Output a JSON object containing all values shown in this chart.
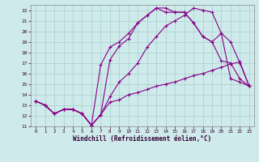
{
  "xlabel": "Windchill (Refroidissement éolien,°C)",
  "bg_color": "#ceeaea",
  "grid_color": "#aacece",
  "line_color": "#880088",
  "xlim": [
    -0.5,
    23.5
  ],
  "ylim": [
    11,
    22.5
  ],
  "yticks": [
    11,
    12,
    13,
    14,
    15,
    16,
    17,
    18,
    19,
    20,
    21,
    22
  ],
  "xticks": [
    0,
    1,
    2,
    3,
    4,
    5,
    6,
    7,
    8,
    9,
    10,
    11,
    12,
    13,
    14,
    15,
    16,
    17,
    18,
    19,
    20,
    21,
    22,
    23
  ],
  "line1_x": [
    0,
    1,
    2,
    3,
    4,
    5,
    6,
    7,
    8,
    9,
    10,
    11,
    12,
    13,
    14,
    15,
    16,
    17,
    18,
    19,
    20,
    21,
    22,
    23
  ],
  "line1_y": [
    13.4,
    13.0,
    12.2,
    12.6,
    12.6,
    12.2,
    11.1,
    12.1,
    13.3,
    13.5,
    14.0,
    14.2,
    14.5,
    14.8,
    15.0,
    15.2,
    15.5,
    15.8,
    16.0,
    16.3,
    16.6,
    16.9,
    17.1,
    14.8
  ],
  "line2_x": [
    0,
    1,
    2,
    3,
    4,
    5,
    6,
    7,
    8,
    9,
    10,
    11,
    12,
    13,
    14,
    15,
    16,
    17,
    18,
    19,
    20,
    21,
    22,
    23
  ],
  "line2_y": [
    13.4,
    13.0,
    12.2,
    12.6,
    12.6,
    12.2,
    11.1,
    12.1,
    17.3,
    18.6,
    19.3,
    20.8,
    21.5,
    22.2,
    22.2,
    21.8,
    21.8,
    20.8,
    19.5,
    19.0,
    19.8,
    15.5,
    15.2,
    14.8
  ],
  "line3_x": [
    0,
    1,
    2,
    3,
    4,
    5,
    6,
    7,
    8,
    9,
    10,
    11,
    12,
    13,
    14,
    15,
    16,
    17,
    18,
    19,
    20,
    21,
    22,
    23
  ],
  "line3_y": [
    13.4,
    13.0,
    12.2,
    12.6,
    12.6,
    12.2,
    11.1,
    16.8,
    18.5,
    19.0,
    19.8,
    20.8,
    21.5,
    22.2,
    21.8,
    21.8,
    21.8,
    20.8,
    19.5,
    19.0,
    17.2,
    17.0,
    15.5,
    14.8
  ],
  "line4_x": [
    0,
    1,
    2,
    3,
    4,
    5,
    6,
    7,
    8,
    9,
    10,
    11,
    12,
    13,
    14,
    15,
    16,
    17,
    18,
    19,
    20,
    21,
    22,
    23
  ],
  "line4_y": [
    13.4,
    13.0,
    12.2,
    12.6,
    12.6,
    12.2,
    11.1,
    12.1,
    13.8,
    15.2,
    16.0,
    17.0,
    18.5,
    19.5,
    20.5,
    21.0,
    21.5,
    22.2,
    22.0,
    21.8,
    19.8,
    19.0,
    17.0,
    14.8
  ]
}
